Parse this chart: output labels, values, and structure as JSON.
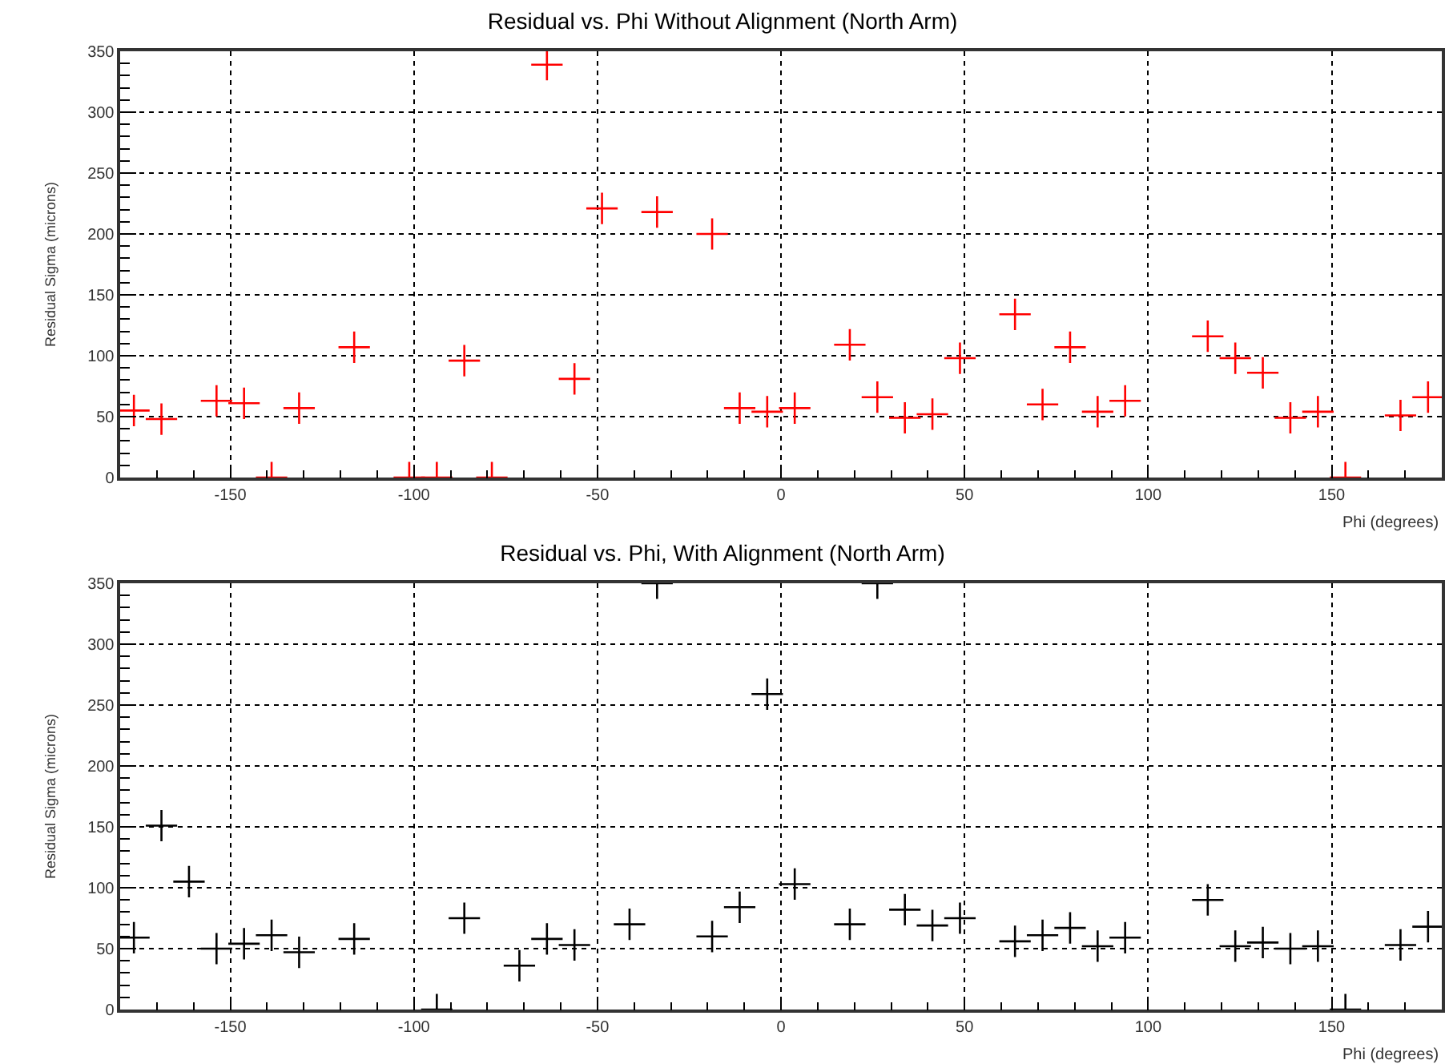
{
  "chart_data": [
    {
      "type": "scatter",
      "title": "Residual vs. Phi Without Alignment (North Arm)",
      "xlabel": "Phi (degrees)",
      "ylabel": "Residual Sigma (microns)",
      "marker": "cross",
      "grid": true,
      "xlim": [
        -180,
        180
      ],
      "xticks": [
        -150,
        -100,
        -50,
        0,
        50,
        100,
        150
      ],
      "ylim": [
        0,
        350
      ],
      "yticks": [
        0,
        50,
        100,
        150,
        200,
        250,
        300,
        350
      ],
      "series": [
        {
          "color": "#ff0000",
          "x": [
            -176.25,
            -168.75,
            -153.75,
            -146.25,
            -138.75,
            -131.25,
            -116.25,
            -101.25,
            -93.75,
            -86.25,
            -78.75,
            -63.75,
            -56.25,
            -48.75,
            -33.75,
            -18.75,
            -11.25,
            -3.75,
            3.75,
            18.75,
            26.25,
            33.75,
            41.25,
            48.75,
            63.75,
            71.25,
            78.75,
            86.25,
            93.75,
            116.25,
            123.75,
            131.25,
            138.75,
            146.25,
            153.75,
            168.75,
            176.25
          ],
          "values": [
            55,
            48,
            63,
            61,
            0,
            57,
            107,
            0,
            0,
            96,
            0,
            339,
            81,
            221,
            218,
            200,
            57,
            54,
            57,
            109,
            66,
            49,
            52,
            98,
            134,
            60,
            107,
            54,
            63,
            116,
            98,
            86,
            49,
            54,
            0,
            51,
            66
          ]
        }
      ]
    },
    {
      "type": "scatter",
      "title": "Residual vs. Phi, With Alignment (North Arm)",
      "xlabel": "Phi (degrees)",
      "ylabel": "Residual Sigma (microns)",
      "marker": "cross",
      "grid": true,
      "xlim": [
        -180,
        180
      ],
      "xticks": [
        -150,
        -100,
        -50,
        0,
        50,
        100,
        150
      ],
      "ylim": [
        0,
        350
      ],
      "yticks": [
        0,
        50,
        100,
        150,
        200,
        250,
        300,
        350
      ],
      "series": [
        {
          "color": "#000000",
          "x": [
            -176.25,
            -168.75,
            -161.25,
            -153.75,
            -146.25,
            -138.75,
            -131.25,
            -116.25,
            -93.75,
            -86.25,
            -71.25,
            -63.75,
            -56.25,
            -41.25,
            -33.75,
            -18.75,
            -11.25,
            -3.75,
            3.75,
            18.75,
            26.25,
            33.75,
            41.25,
            48.75,
            63.75,
            71.25,
            78.75,
            86.25,
            93.75,
            116.25,
            123.75,
            131.25,
            138.75,
            146.25,
            153.75,
            168.75,
            176.25
          ],
          "values": [
            59,
            151,
            105,
            50,
            54,
            61,
            47,
            58,
            0,
            75,
            36,
            58,
            53,
            70,
            350,
            60,
            84,
            259,
            103,
            70,
            350,
            82,
            69,
            75,
            56,
            61,
            67,
            52,
            59,
            90,
            52,
            55,
            50,
            52,
            0,
            53,
            68
          ]
        }
      ]
    }
  ]
}
